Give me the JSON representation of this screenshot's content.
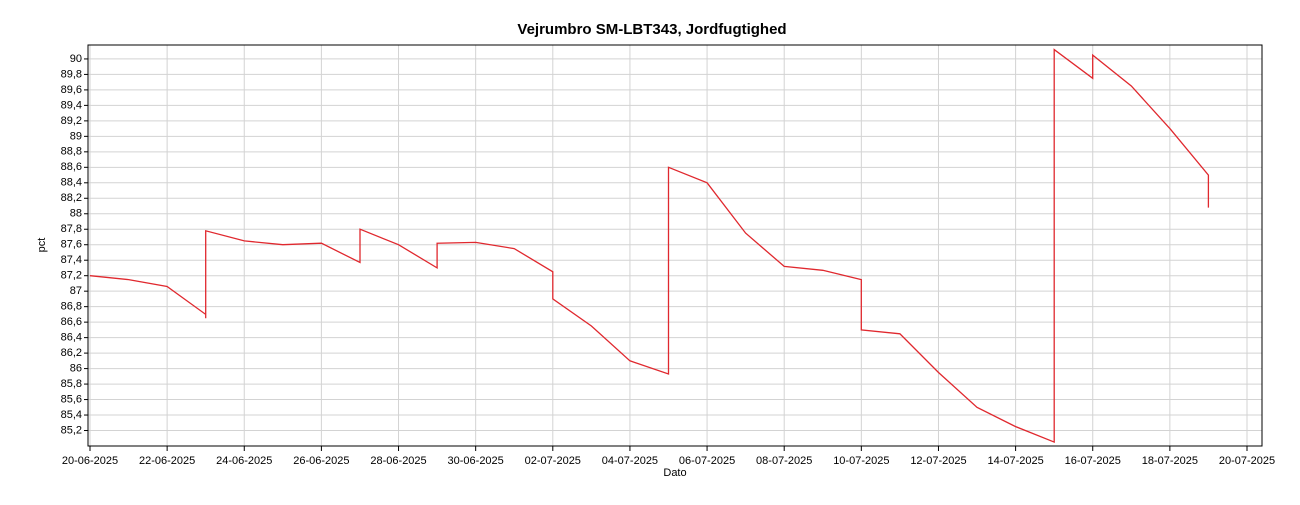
{
  "chart_data": {
    "type": "line",
    "title": "Vejrumbro SM-LBT343, Jordfugtighed",
    "x_label": "Dato",
    "y_label": "pct",
    "grid": true,
    "x": [
      "20-06-2025",
      "21-06-2025",
      "22-06-2025",
      "23-06-2025",
      "23-06-2025",
      "23-06-2025",
      "24-06-2025",
      "25-06-2025",
      "26-06-2025",
      "27-06-2025",
      "27-06-2025",
      "28-06-2025",
      "29-06-2025",
      "29-06-2025",
      "30-06-2025",
      "01-07-2025",
      "02-07-2025",
      "02-07-2025",
      "03-07-2025",
      "04-07-2025",
      "05-07-2025",
      "05-07-2025",
      "06-07-2025",
      "07-07-2025",
      "08-07-2025",
      "09-07-2025",
      "10-07-2025",
      "10-07-2025",
      "11-07-2025",
      "12-07-2025",
      "13-07-2025",
      "14-07-2025",
      "15-07-2025",
      "15-07-2025",
      "16-07-2025",
      "16-07-2025",
      "17-07-2025",
      "18-07-2025",
      "19-07-2025",
      "19-07-2025"
    ],
    "series": [
      {
        "name": "Jordfugtighed",
        "color": "#e0282e",
        "values": [
          87.2,
          87.15,
          87.06,
          86.7,
          86.65,
          87.78,
          87.65,
          87.6,
          87.62,
          87.37,
          87.8,
          87.6,
          87.3,
          87.62,
          87.63,
          87.55,
          87.25,
          86.9,
          86.55,
          86.1,
          85.93,
          88.6,
          88.4,
          87.75,
          87.32,
          87.27,
          87.15,
          86.5,
          86.45,
          85.95,
          85.5,
          85.25,
          85.05,
          90.12,
          89.75,
          90.05,
          89.65,
          89.1,
          88.5,
          88.08
        ]
      }
    ],
    "xlim": [
      "20-06-2025",
      "20-07-2025"
    ],
    "xticks": [
      "20-06-2025",
      "22-06-2025",
      "24-06-2025",
      "26-06-2025",
      "28-06-2025",
      "30-06-2025",
      "02-07-2025",
      "04-07-2025",
      "06-07-2025",
      "08-07-2025",
      "10-07-2025",
      "12-07-2025",
      "14-07-2025",
      "16-07-2025",
      "18-07-2025",
      "20-07-2025"
    ],
    "ylim": [
      85,
      90.18
    ],
    "yticks": [
      {
        "value": 85.2,
        "label": "85,2"
      },
      {
        "value": 85.4,
        "label": "85,4"
      },
      {
        "value": 85.6,
        "label": "85,6"
      },
      {
        "value": 85.8,
        "label": "85,8"
      },
      86,
      {
        "value": 86.2,
        "label": "86,2"
      },
      {
        "value": 86.4,
        "label": "86,4"
      },
      {
        "value": 86.6,
        "label": "86,6"
      },
      {
        "value": 86.8,
        "label": "86,8"
      },
      87,
      {
        "value": 87.2,
        "label": "87,2"
      },
      {
        "value": 87.4,
        "label": "87,4"
      },
      {
        "value": 87.6,
        "label": "87,6"
      },
      {
        "value": 87.8,
        "label": "87,8"
      },
      88,
      {
        "value": 88.2,
        "label": "88,2"
      },
      {
        "value": 88.4,
        "label": "88,4"
      },
      {
        "value": 88.6,
        "label": "88,6"
      },
      {
        "value": 88.8,
        "label": "88,8"
      },
      89,
      {
        "value": 89.2,
        "label": "89,2"
      },
      {
        "value": 89.4,
        "label": "89,4"
      },
      {
        "value": 89.6,
        "label": "89,6"
      },
      {
        "value": 89.8,
        "label": "89,8"
      },
      90
    ]
  }
}
